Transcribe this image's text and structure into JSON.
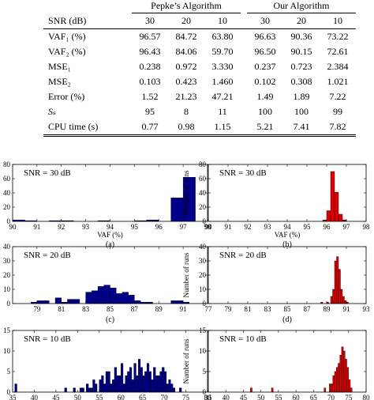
{
  "table": {
    "group_headers": [
      "Pepke’s Algorithm",
      "Our Algorithm"
    ],
    "snr_label": "SNR (dB)",
    "snr_values": [
      "30",
      "20",
      "10",
      "30",
      "20",
      "10"
    ],
    "rows": [
      {
        "label": "VAF₁ (%)",
        "values": [
          "96.57",
          "84.72",
          "63.80",
          "96.63",
          "90.36",
          "73.22"
        ]
      },
      {
        "label": "VAF₂ (%)",
        "values": [
          "96.43",
          "84.06",
          "59.70",
          "96.50",
          "90.15",
          "72.61"
        ]
      },
      {
        "label": "MSE₁",
        "values": [
          "0.238",
          "0.972",
          "3.330",
          "0.237",
          "0.723",
          "2.384"
        ]
      },
      {
        "label": "MSE₂",
        "values": [
          "0.103",
          "0.423",
          "1.460",
          "0.102",
          "0.308",
          "1.021"
        ]
      },
      {
        "label": "Error (%)",
        "values": [
          "1.52",
          "21.23",
          "47.21",
          "1.49",
          "1.89",
          "7.22"
        ]
      },
      {
        "label": "Sₛ",
        "values": [
          "95",
          "8",
          "11",
          "100",
          "100",
          "99"
        ]
      },
      {
        "label": "CPU time (s)",
        "values": [
          "0.77",
          "0.98",
          "1.15",
          "5.21",
          "7.41",
          "7.82"
        ]
      }
    ]
  },
  "chart_data": [
    {
      "type": "bar",
      "panel": "(a)",
      "annotation": "SNR = 30 dB",
      "color": "#00008b",
      "xlabel": "VAF (%)",
      "ylabel": "",
      "xlim": [
        90,
        98
      ],
      "ylim": [
        0,
        80
      ],
      "xticks": [
        "90",
        "91",
        "92",
        "93",
        "94",
        "95",
        "96",
        "97",
        "98"
      ],
      "yticks": [
        "0",
        "20",
        "40",
        "60",
        "80"
      ],
      "bin_width": 0.5,
      "bins": [
        [
          90.25,
          2
        ],
        [
          90.75,
          1
        ],
        [
          91.75,
          1
        ],
        [
          92.25,
          1
        ],
        [
          93.75,
          1
        ],
        [
          95.25,
          1
        ],
        [
          95.75,
          2
        ],
        [
          96.75,
          33
        ],
        [
          97.25,
          62
        ]
      ]
    },
    {
      "type": "bar",
      "panel": "(b)",
      "annotation": "SNR = 30 dB",
      "color": "#e00000",
      "xlabel": "VAF (%)",
      "ylabel": "Number of runs",
      "xlim": [
        90,
        98
      ],
      "ylim": [
        0,
        80
      ],
      "xticks": [
        "90",
        "91",
        "92",
        "93",
        "94",
        "95",
        "96",
        "97",
        "98"
      ],
      "yticks": [
        "0",
        "20",
        "40",
        "60",
        "80"
      ],
      "bin_width": 0.2,
      "bins": [
        [
          95.9,
          2
        ],
        [
          96.1,
          15
        ],
        [
          96.3,
          70
        ],
        [
          96.5,
          41
        ],
        [
          96.7,
          10
        ],
        [
          96.9,
          2
        ]
      ]
    },
    {
      "type": "bar",
      "panel": "(c)",
      "annotation": "SNR = 20 dB",
      "color": "#00008b",
      "xlabel": "",
      "ylabel": "",
      "xlim": [
        77,
        93
      ],
      "ylim": [
        0,
        40
      ],
      "xticks": [
        "79",
        "81",
        "83",
        "85",
        "87",
        "89",
        "91"
      ],
      "yticks": [
        "0",
        "10",
        "20",
        "30",
        "40"
      ],
      "bin_width": 0.5,
      "bins": [
        [
          78.75,
          1
        ],
        [
          79.25,
          2
        ],
        [
          79.75,
          2
        ],
        [
          80.75,
          4
        ],
        [
          81.25,
          1
        ],
        [
          81.75,
          3
        ],
        [
          82.25,
          3
        ],
        [
          83.25,
          8
        ],
        [
          83.75,
          9
        ],
        [
          84.25,
          12
        ],
        [
          84.75,
          13
        ],
        [
          85.25,
          11
        ],
        [
          85.75,
          7
        ],
        [
          86.25,
          8
        ],
        [
          86.75,
          6
        ],
        [
          87.25,
          2
        ],
        [
          87.75,
          1
        ],
        [
          88.25,
          1
        ],
        [
          90.25,
          2
        ],
        [
          90.75,
          2
        ],
        [
          91.25,
          1
        ]
      ]
    },
    {
      "type": "bar",
      "panel": "(d)",
      "annotation": "SNR = 20 dB",
      "color": "#e00000",
      "xlabel": "",
      "ylabel": "Number of runs",
      "xlim": [
        77,
        93
      ],
      "ylim": [
        0,
        40
      ],
      "xticks": [
        "77",
        "79",
        "81",
        "83",
        "85",
        "87",
        "89",
        "91",
        "93"
      ],
      "yticks": [
        "0",
        "10",
        "20",
        "30",
        "40"
      ],
      "bin_width": 0.2,
      "bins": [
        [
          88.5,
          1
        ],
        [
          89.1,
          1
        ],
        [
          89.5,
          5
        ],
        [
          89.7,
          10
        ],
        [
          89.9,
          30
        ],
        [
          90.1,
          33
        ],
        [
          90.3,
          24
        ],
        [
          90.5,
          10
        ],
        [
          90.7,
          5
        ],
        [
          90.9,
          2
        ],
        [
          91.1,
          1
        ]
      ]
    },
    {
      "type": "bar",
      "panel": "",
      "annotation": "SNR = 10 dB",
      "color": "#00008b",
      "xlabel": "",
      "ylabel": "",
      "xlim": [
        35,
        80
      ],
      "ylim": [
        0,
        15
      ],
      "xticks": [
        "35",
        "40",
        "45",
        "50",
        "55",
        "60",
        "65",
        "70",
        "75",
        "80"
      ],
      "yticks": [
        "0",
        "5",
        "10",
        "15"
      ],
      "bin_width": 0.5,
      "bins": [
        [
          35.75,
          2
        ],
        [
          47.25,
          1
        ],
        [
          49.25,
          1
        ],
        [
          50.75,
          1
        ],
        [
          51.25,
          1
        ],
        [
          52.25,
          2
        ],
        [
          52.75,
          1
        ],
        [
          53.25,
          1
        ],
        [
          53.75,
          3
        ],
        [
          54.25,
          2
        ],
        [
          55.25,
          3
        ],
        [
          55.75,
          4
        ],
        [
          56.25,
          2
        ],
        [
          56.75,
          5
        ],
        [
          57.25,
          5
        ],
        [
          57.75,
          2
        ],
        [
          58.25,
          3
        ],
        [
          58.75,
          6
        ],
        [
          59.25,
          4
        ],
        [
          59.75,
          4
        ],
        [
          60.25,
          7
        ],
        [
          60.75,
          2
        ],
        [
          61.25,
          4
        ],
        [
          61.75,
          5
        ],
        [
          62.25,
          6
        ],
        [
          62.75,
          3
        ],
        [
          63.25,
          7
        ],
        [
          63.75,
          4
        ],
        [
          64.25,
          8
        ],
        [
          64.75,
          6
        ],
        [
          65.25,
          4
        ],
        [
          65.75,
          5
        ],
        [
          66.25,
          7
        ],
        [
          66.75,
          5
        ],
        [
          67.25,
          3
        ],
        [
          67.75,
          6
        ],
        [
          68.25,
          4
        ],
        [
          68.75,
          4
        ],
        [
          69.25,
          5
        ],
        [
          69.75,
          6
        ],
        [
          70.25,
          5
        ],
        [
          70.75,
          2
        ],
        [
          71.25,
          3
        ],
        [
          71.75,
          2
        ],
        [
          72.25,
          1
        ],
        [
          73.75,
          1
        ]
      ]
    },
    {
      "type": "bar",
      "panel": "",
      "annotation": "SNR = 10 dB",
      "color": "#e00000",
      "xlabel": "",
      "ylabel": "Number of runs",
      "xlim": [
        35,
        80
      ],
      "ylim": [
        0,
        15
      ],
      "xticks": [
        "35",
        "40",
        "45",
        "50",
        "55",
        "60",
        "65",
        "70",
        "75",
        "80"
      ],
      "yticks": [
        "0",
        "5",
        "10",
        "15"
      ],
      "bin_width": 0.5,
      "bins": [
        [
          47.25,
          1
        ],
        [
          53.25,
          1
        ],
        [
          68.25,
          1
        ],
        [
          69.75,
          2
        ],
        [
          70.25,
          2
        ],
        [
          70.75,
          4
        ],
        [
          71.25,
          5
        ],
        [
          71.75,
          6
        ],
        [
          72.25,
          7
        ],
        [
          72.75,
          9
        ],
        [
          73.25,
          11
        ],
        [
          73.75,
          10
        ],
        [
          74.25,
          8
        ],
        [
          74.75,
          6
        ],
        [
          75.25,
          3
        ],
        [
          75.75,
          1
        ]
      ]
    }
  ]
}
